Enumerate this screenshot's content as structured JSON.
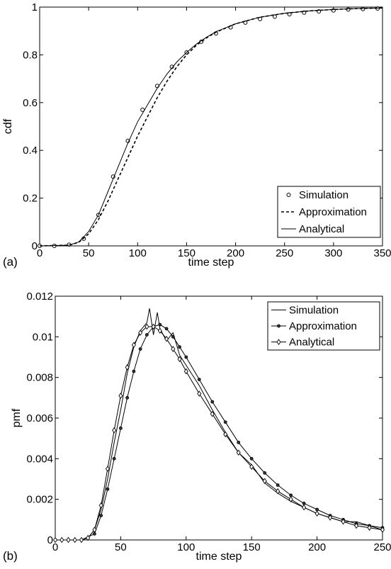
{
  "chart_data": [
    {
      "type": "line",
      "panel_label": "(a)",
      "xlabel": "time step",
      "ylabel": "cdf",
      "xlim": [
        0,
        350
      ],
      "ylim": [
        0,
        1
      ],
      "xticks": [
        "0",
        "50",
        "100",
        "150",
        "200",
        "250",
        "300",
        "350"
      ],
      "yticks": [
        "0",
        "0.2",
        "0.4",
        "0.6",
        "0.8",
        "1"
      ],
      "grid": false,
      "legend_position": "bottom-right",
      "series": [
        {
          "name": "Simulation",
          "marker": "circle",
          "style": "markers",
          "x": [
            0,
            15,
            30,
            45,
            60,
            75,
            90,
            105,
            120,
            135,
            150,
            165,
            180,
            195,
            210,
            225,
            240,
            255,
            270,
            285,
            300,
            315,
            330,
            345
          ],
          "y": [
            0,
            0,
            0.005,
            0.03,
            0.13,
            0.29,
            0.44,
            0.57,
            0.67,
            0.75,
            0.81,
            0.855,
            0.89,
            0.915,
            0.935,
            0.95,
            0.96,
            0.97,
            0.977,
            0.982,
            0.986,
            0.99,
            0.992,
            0.994
          ]
        },
        {
          "name": "Approximation",
          "style": "dashed",
          "x": [
            0,
            30,
            40,
            50,
            60,
            70,
            80,
            90,
            100,
            110,
            120,
            130,
            140,
            150,
            160,
            170,
            180,
            200,
            225,
            250,
            275,
            300,
            325,
            350
          ],
          "y": [
            0,
            0.003,
            0.015,
            0.05,
            0.11,
            0.19,
            0.28,
            0.37,
            0.46,
            0.54,
            0.62,
            0.69,
            0.75,
            0.8,
            0.84,
            0.87,
            0.895,
            0.93,
            0.958,
            0.974,
            0.984,
            0.99,
            0.994,
            0.996
          ]
        },
        {
          "name": "Analytical",
          "style": "solid",
          "x": [
            0,
            30,
            40,
            50,
            60,
            70,
            80,
            90,
            100,
            110,
            120,
            130,
            140,
            150,
            160,
            170,
            180,
            200,
            225,
            250,
            275,
            300,
            325,
            350
          ],
          "y": [
            0,
            0.003,
            0.017,
            0.06,
            0.13,
            0.23,
            0.33,
            0.43,
            0.52,
            0.59,
            0.66,
            0.72,
            0.77,
            0.81,
            0.845,
            0.873,
            0.897,
            0.93,
            0.958,
            0.974,
            0.984,
            0.99,
            0.994,
            0.996
          ]
        }
      ]
    },
    {
      "type": "line",
      "panel_label": "(b)",
      "xlabel": "time step",
      "ylabel": "pmf",
      "xlim": [
        0,
        250
      ],
      "ylim": [
        0,
        0.012
      ],
      "xticks": [
        "0",
        "50",
        "100",
        "150",
        "200",
        "250"
      ],
      "yticks": [
        "0",
        "0.002",
        "0.004",
        "0.006",
        "0.008",
        "0.01",
        "0.012"
      ],
      "grid": false,
      "legend_position": "top-right",
      "series": [
        {
          "name": "Simulation",
          "style": "solid-noisy",
          "x": [
            0,
            20,
            25,
            30,
            35,
            40,
            45,
            50,
            55,
            60,
            65,
            70,
            72,
            75,
            78,
            80,
            85,
            90,
            95,
            100,
            110,
            120,
            130,
            140,
            150,
            160,
            170,
            180,
            190,
            200,
            210,
            220,
            230,
            240,
            250
          ],
          "y": [
            0,
            0,
            0.0001,
            0.0005,
            0.0015,
            0.003,
            0.0048,
            0.0064,
            0.0082,
            0.0095,
            0.0103,
            0.0107,
            0.0114,
            0.0101,
            0.0112,
            0.0104,
            0.0098,
            0.0102,
            0.0091,
            0.0086,
            0.0076,
            0.0064,
            0.0053,
            0.0043,
            0.0037,
            0.0028,
            0.0023,
            0.0019,
            0.0016,
            0.0013,
            0.0011,
            0.0009,
            0.0009,
            0.0007,
            0.0005
          ]
        },
        {
          "name": "Approximation",
          "marker": "dot",
          "style": "solid-markers",
          "x": [
            0,
            10,
            20,
            30,
            35,
            40,
            45,
            50,
            55,
            60,
            65,
            70,
            75,
            80,
            85,
            90,
            95,
            100,
            110,
            120,
            130,
            140,
            150,
            160,
            170,
            180,
            190,
            200,
            210,
            220,
            230,
            240,
            250
          ],
          "y": [
            0,
            0,
            0,
            0.0003,
            0.0012,
            0.0025,
            0.004,
            0.0055,
            0.007,
            0.0083,
            0.0094,
            0.0101,
            0.0105,
            0.0106,
            0.0104,
            0.01,
            0.0095,
            0.009,
            0.0079,
            0.0068,
            0.0058,
            0.0048,
            0.004,
            0.0033,
            0.0027,
            0.0022,
            0.0018,
            0.0015,
            0.0012,
            0.001,
            0.0008,
            0.0007,
            0.0006
          ]
        },
        {
          "name": "Analytical",
          "marker": "diamond",
          "style": "solid-markers",
          "x": [
            0,
            5,
            10,
            15,
            20,
            25,
            30,
            35,
            40,
            45,
            50,
            55,
            60,
            65,
            70,
            75,
            80,
            85,
            90,
            95,
            100,
            110,
            120,
            130,
            140,
            150,
            160,
            170,
            180,
            190,
            200,
            210,
            220,
            230,
            240,
            250
          ],
          "y": [
            0,
            0,
            0,
            0,
            0,
            0.0001,
            0.0005,
            0.0017,
            0.0035,
            0.0054,
            0.0071,
            0.0085,
            0.0096,
            0.0102,
            0.0105,
            0.0105,
            0.0103,
            0.0099,
            0.0094,
            0.0089,
            0.0083,
            0.0072,
            0.0062,
            0.0052,
            0.0043,
            0.0036,
            0.0029,
            0.0024,
            0.002,
            0.0016,
            0.0013,
            0.0011,
            0.0009,
            0.0007,
            0.0006,
            0.0005
          ]
        }
      ]
    }
  ]
}
